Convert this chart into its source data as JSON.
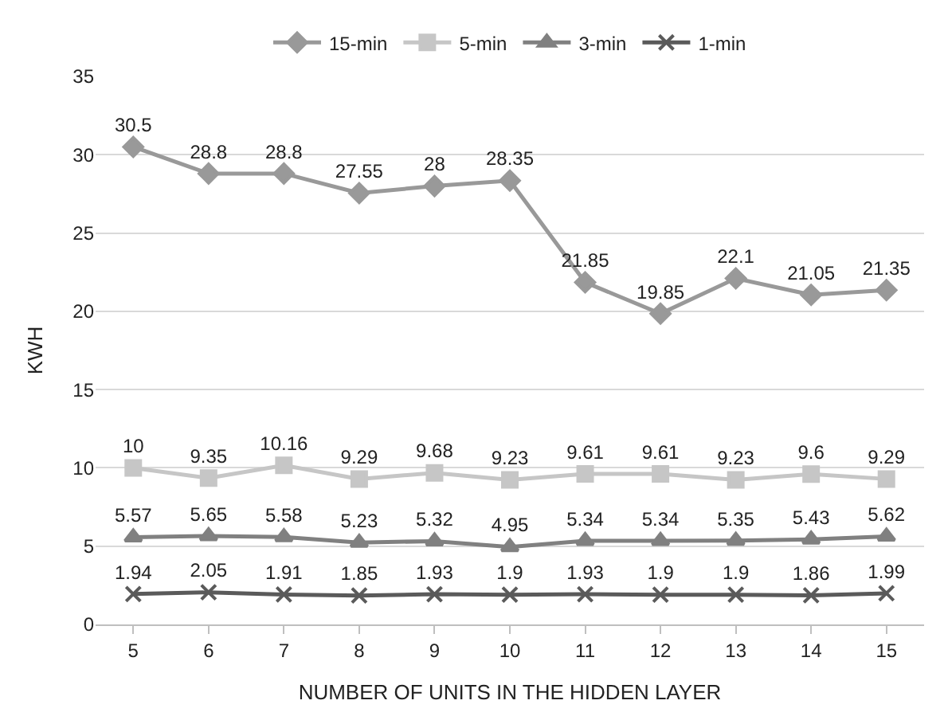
{
  "chart_data": {
    "type": "line",
    "xlabel": "NUMBER OF UNITS IN THE HIDDEN LAYER",
    "ylabel": "KWH",
    "categories": [
      "5",
      "6",
      "7",
      "8",
      "9",
      "10",
      "11",
      "12",
      "13",
      "14",
      "15"
    ],
    "series": [
      {
        "name": "15-min",
        "color": "#999999",
        "marker": "diamond",
        "values": [
          30.5,
          28.8,
          28.8,
          27.55,
          28,
          28.35,
          21.85,
          19.85,
          22.1,
          21.05,
          21.35
        ]
      },
      {
        "name": "5-min",
        "color": "#c6c6c6",
        "marker": "square",
        "values": [
          10,
          9.35,
          10.16,
          9.29,
          9.68,
          9.23,
          9.61,
          9.61,
          9.23,
          9.6,
          9.29
        ]
      },
      {
        "name": "3-min",
        "color": "#808080",
        "marker": "triangle",
        "values": [
          5.57,
          5.65,
          5.58,
          5.23,
          5.32,
          4.95,
          5.34,
          5.34,
          5.35,
          5.43,
          5.62
        ]
      },
      {
        "name": "1-min",
        "color": "#5a5a5a",
        "marker": "cross",
        "values": [
          1.94,
          2.05,
          1.91,
          1.85,
          1.93,
          1.9,
          1.93,
          1.9,
          1.9,
          1.86,
          1.99
        ]
      }
    ],
    "ylim": [
      0,
      35
    ],
    "yticks": [
      0,
      5,
      10,
      15,
      20,
      25,
      30,
      35
    ],
    "grid": "y",
    "legend": "top",
    "data_labels": true,
    "line_style": "solid"
  }
}
